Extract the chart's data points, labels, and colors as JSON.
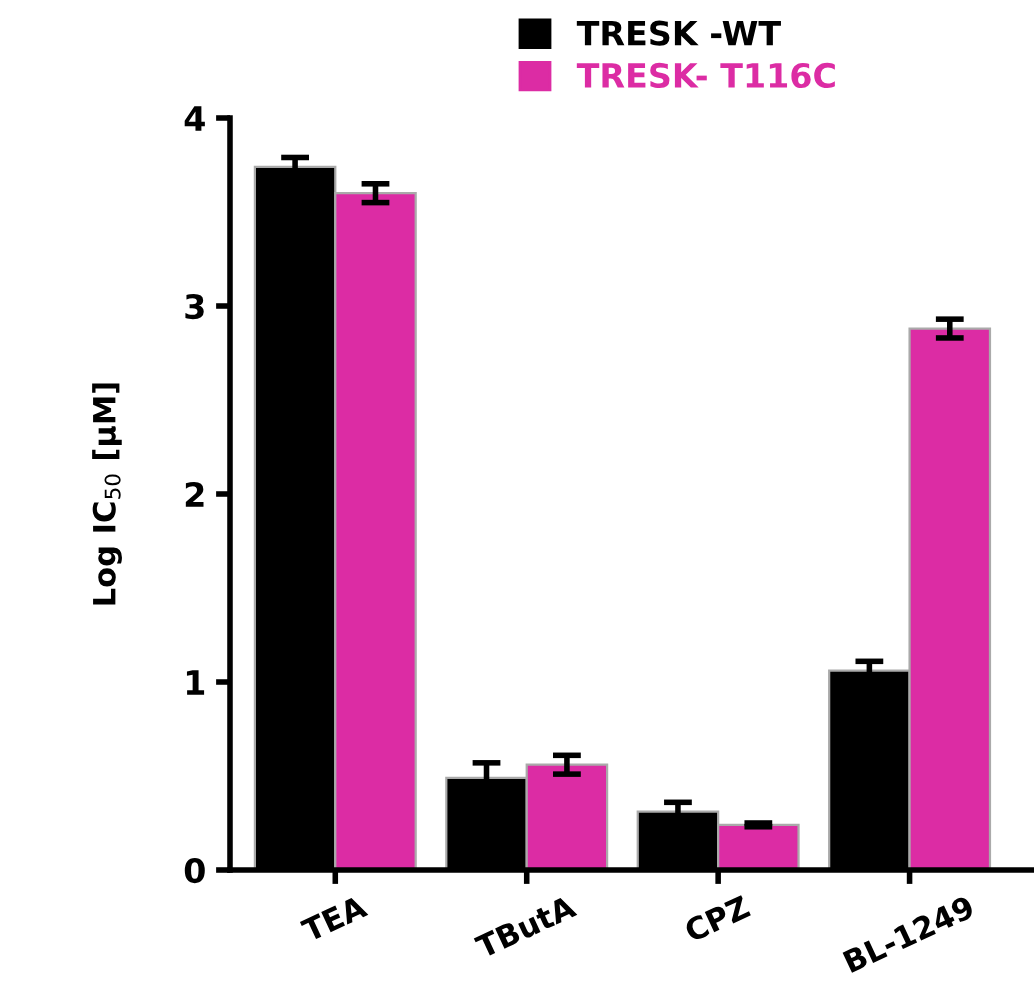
{
  "chart_data": {
    "type": "bar",
    "ylabel": "Log IC$_{50}$ [µM]",
    "categories": [
      "TEA",
      "TButA",
      "CPZ",
      "BL-1249"
    ],
    "series": [
      {
        "name": "TRESK -WT",
        "color": "#000000",
        "values": [
          3.74,
          0.49,
          0.31,
          1.06
        ],
        "errors": [
          0.05,
          0.08,
          0.05,
          0.05
        ]
      },
      {
        "name": "TRESK- T116C",
        "color": "#dc2ca4",
        "values": [
          3.6,
          0.56,
          0.24,
          2.88
        ],
        "errors": [
          0.05,
          0.05,
          0.01,
          0.05
        ]
      }
    ],
    "ylim": [
      0,
      4
    ],
    "yticks": [
      0,
      1,
      2,
      3,
      4
    ],
    "grid": false,
    "legend": "top"
  }
}
